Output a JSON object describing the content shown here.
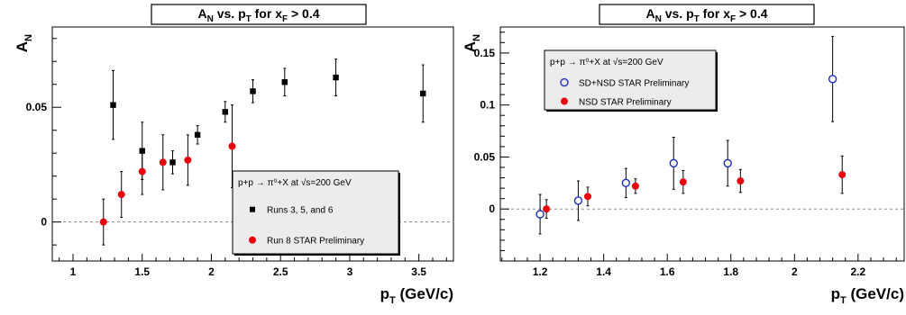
{
  "chart_data": [
    {
      "type": "scatter",
      "title": "A<sub>N</sub> vs. p<sub>T</sub> for x<sub>F</sub> > 0.4",
      "title_parts": {
        "a": "A",
        "a_sub": "N",
        "mid": " vs. p",
        "p_sub": "T",
        "for": " for x",
        "x_sub": "F",
        "tail": " > 0.4"
      },
      "xlabel_parts": {
        "main": "p",
        "sub": "T",
        "unit": " (GeV/c)"
      },
      "ylabel_parts": {
        "main": "A",
        "sub": "N"
      },
      "xlim": [
        0.85,
        3.75
      ],
      "ylim": [
        -0.017,
        0.085
      ],
      "xticks": [
        {
          "v": 1,
          "label": "1"
        },
        {
          "v": 1.5,
          "label": "1.5"
        },
        {
          "v": 2,
          "label": "2"
        },
        {
          "v": 2.5,
          "label": "2.5"
        },
        {
          "v": 3,
          "label": "3"
        },
        {
          "v": 3.5,
          "label": "3.5"
        }
      ],
      "yticks": [
        {
          "v": 0,
          "label": "0"
        },
        {
          "v": 0.05,
          "label": "0.05"
        }
      ],
      "zero_line": true,
      "legend": {
        "position": "lower-right",
        "header": "p+p → π⁰+X at √s=200 GeV",
        "entries": [
          "Runs 3, 5, and 6",
          "Run 8 STAR Preliminary"
        ]
      },
      "series": [
        {
          "name": "Runs 3, 5, and 6",
          "marker": "square",
          "color": "#000000",
          "points": [
            {
              "x": 1.29,
              "y": 0.051,
              "err": 0.015
            },
            {
              "x": 1.5,
              "y": 0.031,
              "err": 0.0125
            },
            {
              "x": 1.72,
              "y": 0.026,
              "err": 0.005
            },
            {
              "x": 1.9,
              "y": 0.038,
              "err": 0.004
            },
            {
              "x": 2.1,
              "y": 0.048,
              "err": 0.0045
            },
            {
              "x": 2.3,
              "y": 0.057,
              "err": 0.005
            },
            {
              "x": 2.53,
              "y": 0.061,
              "err": 0.006
            },
            {
              "x": 2.9,
              "y": 0.063,
              "err": 0.008
            },
            {
              "x": 3.53,
              "y": 0.056,
              "err": 0.0125
            }
          ]
        },
        {
          "name": "Run 8 STAR Preliminary",
          "marker": "circle-filled",
          "color": "#e8000b",
          "points": [
            {
              "x": 1.22,
              "y": 0.0,
              "err": 0.01
            },
            {
              "x": 1.35,
              "y": 0.012,
              "err": 0.01
            },
            {
              "x": 1.5,
              "y": 0.022,
              "err": 0.01
            },
            {
              "x": 1.65,
              "y": 0.026,
              "err": 0.012
            },
            {
              "x": 1.83,
              "y": 0.027,
              "err": 0.011
            },
            {
              "x": 2.15,
              "y": 0.033,
              "err": 0.018
            }
          ]
        }
      ]
    },
    {
      "type": "scatter",
      "title": "A<sub>N</sub> vs. p<sub>T</sub> for x<sub>F</sub> > 0.4",
      "title_parts": {
        "a": "A",
        "a_sub": "N",
        "mid": " vs. p",
        "p_sub": "T",
        "for": " for x",
        "x_sub": "F",
        "tail": " > 0.4"
      },
      "xlabel_parts": {
        "main": "p",
        "sub": "T",
        "unit": " (GeV/c)"
      },
      "ylabel_parts": {
        "main": "A",
        "sub": "N"
      },
      "xlim": [
        1.075,
        2.345
      ],
      "ylim": [
        -0.05,
        0.175
      ],
      "xticks": [
        {
          "v": 1.2,
          "label": "1.2"
        },
        {
          "v": 1.4,
          "label": "1.4"
        },
        {
          "v": 1.6,
          "label": "1.6"
        },
        {
          "v": 1.8,
          "label": "1.8"
        },
        {
          "v": 2.0,
          "label": "2"
        },
        {
          "v": 2.2,
          "label": "2.2"
        }
      ],
      "yticks": [
        {
          "v": 0,
          "label": "0"
        },
        {
          "v": 0.05,
          "label": "0.05"
        },
        {
          "v": 0.1,
          "label": "0.1"
        },
        {
          "v": 0.15,
          "label": "0.15"
        }
      ],
      "zero_line": true,
      "legend": {
        "position": "top-left",
        "header": "p+p → π⁰+X at √s=200 GeV",
        "entries": [
          "SD+NSD STAR Preliminary",
          "NSD STAR Preliminary"
        ]
      },
      "series": [
        {
          "name": "SD+NSD STAR Preliminary",
          "marker": "circle-open",
          "color": "#1f2dbf",
          "points": [
            {
              "x": 1.2,
              "y": -0.005,
              "err": 0.019
            },
            {
              "x": 1.32,
              "y": 0.008,
              "err": 0.019
            },
            {
              "x": 1.47,
              "y": 0.025,
              "err": 0.014
            },
            {
              "x": 1.62,
              "y": 0.044,
              "err": 0.025
            },
            {
              "x": 1.79,
              "y": 0.044,
              "err": 0.022
            },
            {
              "x": 2.12,
              "y": 0.125,
              "err": 0.041
            }
          ]
        },
        {
          "name": "NSD STAR Preliminary",
          "marker": "circle-filled",
          "color": "#e8000b",
          "points": [
            {
              "x": 1.22,
              "y": 0.0,
              "err": 0.009
            },
            {
              "x": 1.35,
              "y": 0.012,
              "err": 0.009
            },
            {
              "x": 1.5,
              "y": 0.022,
              "err": 0.007
            },
            {
              "x": 1.65,
              "y": 0.026,
              "err": 0.011
            },
            {
              "x": 1.83,
              "y": 0.027,
              "err": 0.011
            },
            {
              "x": 2.15,
              "y": 0.033,
              "err": 0.018
            }
          ]
        }
      ]
    }
  ]
}
